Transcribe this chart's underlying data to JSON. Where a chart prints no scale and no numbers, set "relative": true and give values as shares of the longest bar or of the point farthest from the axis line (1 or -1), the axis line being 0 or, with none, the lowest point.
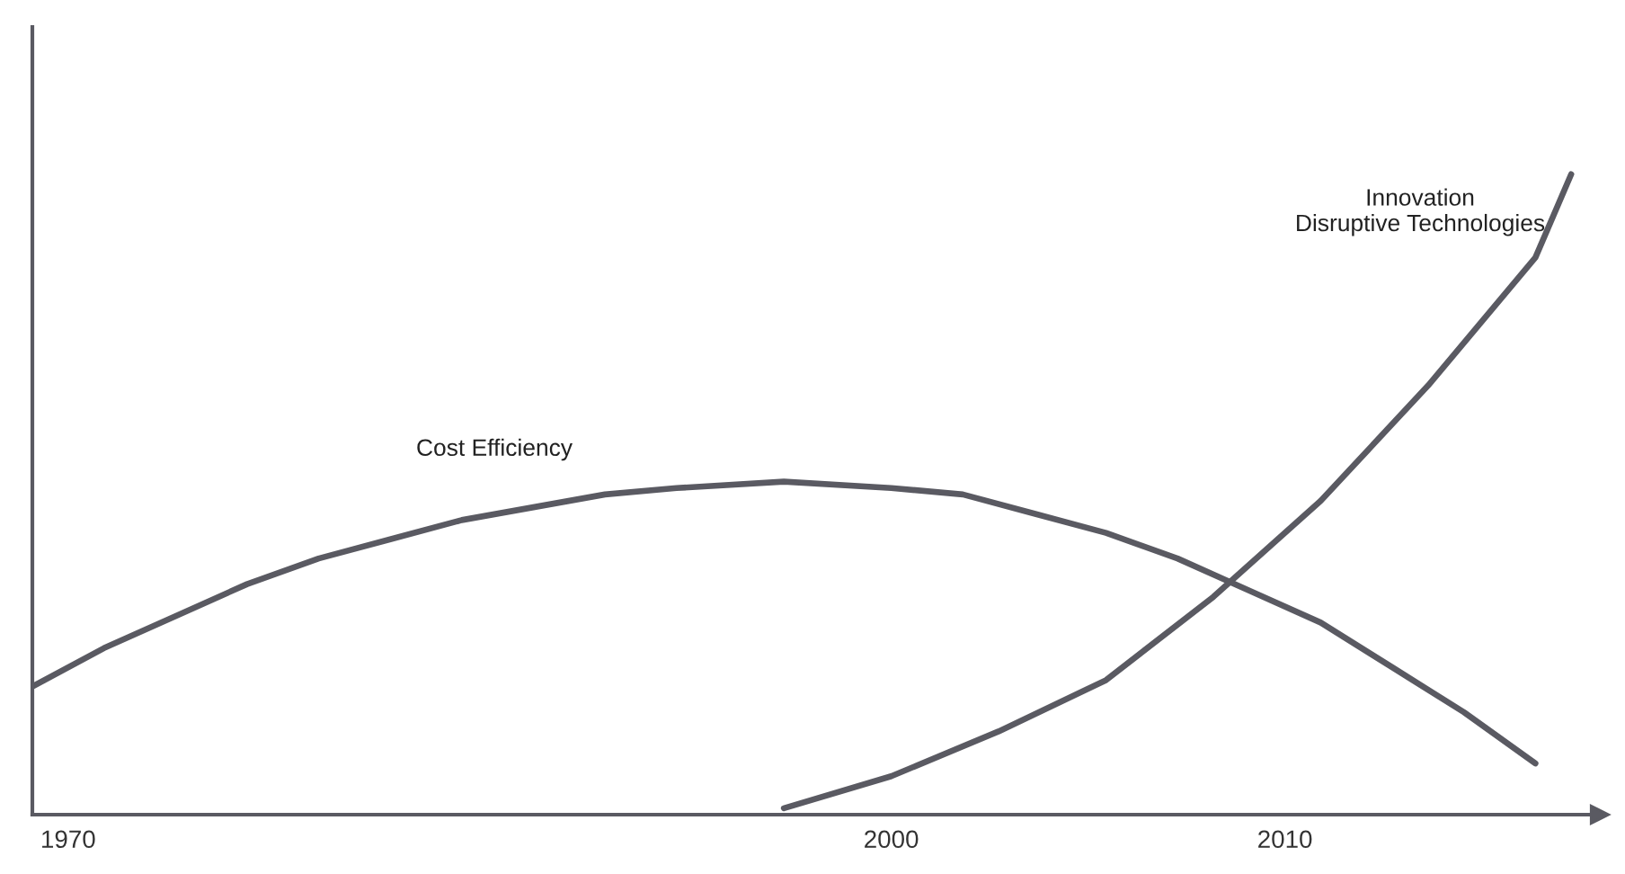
{
  "chart_data": {
    "type": "line",
    "relative": true,
    "tick_labels": "x",
    "grid": false,
    "legend": false,
    "marker": "none",
    "line_style": "solid",
    "categories": [
      null,
      "1970",
      null,
      null,
      null,
      null,
      null,
      null,
      null,
      null,
      null,
      null,
      null,
      null,
      null,
      null,
      null,
      null,
      null,
      null,
      null,
      null,
      null,
      null,
      "2000",
      null,
      null,
      null,
      null,
      null,
      null,
      null,
      null,
      null,
      null,
      "2010",
      null,
      null,
      null,
      null,
      null,
      null,
      null,
      null
    ],
    "series": [
      {
        "color": "#5a5a62",
        "values": [
          0.2,
          null,
          0.26,
          null,
          0.31,
          null,
          0.36,
          null,
          0.4,
          null,
          0.43,
          null,
          0.46,
          null,
          0.48,
          null,
          0.5,
          null,
          0.51,
          null,
          null,
          0.52,
          null,
          null,
          0.51,
          null,
          0.5,
          null,
          0.47,
          null,
          0.44,
          null,
          0.4,
          null,
          0.35,
          null,
          0.3,
          null,
          0.23,
          null,
          0.16,
          null,
          0.08,
          null
        ]
      },
      {
        "color": "#5a5a62",
        "values": [
          null,
          null,
          null,
          null,
          null,
          null,
          null,
          null,
          null,
          null,
          null,
          null,
          null,
          null,
          null,
          null,
          null,
          null,
          null,
          null,
          null,
          0.01,
          null,
          null,
          0.06,
          null,
          null,
          0.13,
          null,
          null,
          0.21,
          null,
          null,
          0.34,
          null,
          null,
          0.49,
          null,
          null,
          0.67,
          null,
          null,
          0.87,
          1.0
        ]
      }
    ],
    "annotations": [
      "Cost Efficiency",
      "Innovation\nDisruptive Technologies"
    ]
  }
}
